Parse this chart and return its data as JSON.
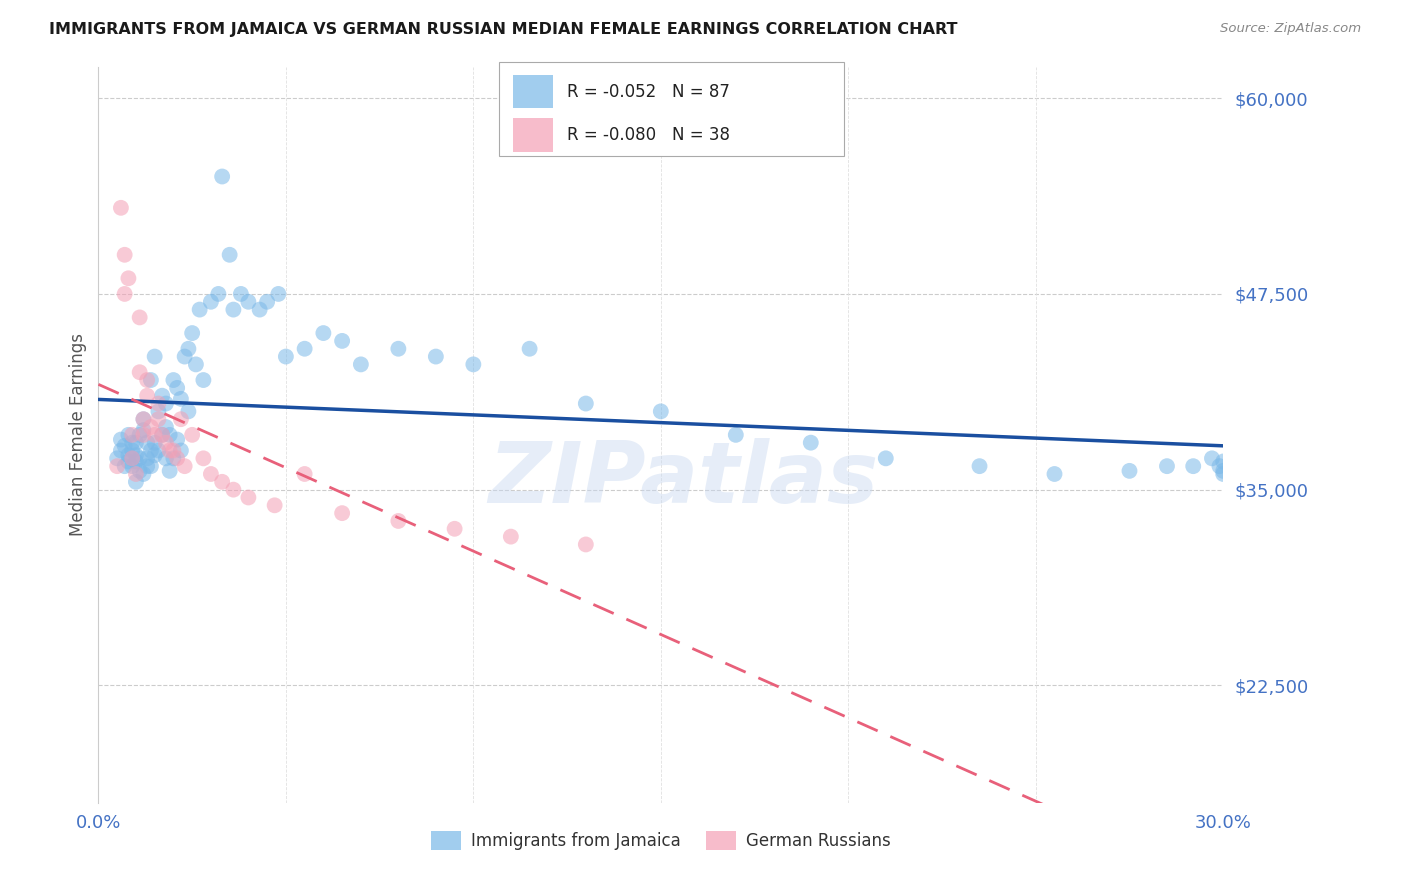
{
  "title": "IMMIGRANTS FROM JAMAICA VS GERMAN RUSSIAN MEDIAN FEMALE EARNINGS CORRELATION CHART",
  "source": "Source: ZipAtlas.com",
  "ylabel": "Median Female Earnings",
  "ytick_labels": [
    "$60,000",
    "$47,500",
    "$35,000",
    "$22,500"
  ],
  "ytick_values": [
    60000,
    47500,
    35000,
    22500
  ],
  "ymin": 15000,
  "ymax": 62000,
  "xmin": 0.0,
  "xmax": 0.3,
  "jamaica_R": "-0.052",
  "jamaica_N": "87",
  "german_R": "-0.080",
  "german_N": "38",
  "jamaica_color": "#7ab8e8",
  "german_color": "#f4a0b5",
  "jamaica_line_color": "#1a4fa0",
  "german_line_color": "#e8607a",
  "axis_label_color": "#4472c4",
  "watermark": "ZIPatlas",
  "jamaica_scatter_x": [
    0.005,
    0.006,
    0.006,
    0.007,
    0.007,
    0.008,
    0.008,
    0.008,
    0.009,
    0.009,
    0.009,
    0.009,
    0.01,
    0.01,
    0.01,
    0.01,
    0.011,
    0.011,
    0.011,
    0.012,
    0.012,
    0.012,
    0.013,
    0.013,
    0.013,
    0.014,
    0.014,
    0.014,
    0.015,
    0.015,
    0.015,
    0.016,
    0.016,
    0.017,
    0.017,
    0.018,
    0.018,
    0.018,
    0.019,
    0.019,
    0.02,
    0.02,
    0.021,
    0.021,
    0.022,
    0.022,
    0.023,
    0.024,
    0.024,
    0.025,
    0.026,
    0.027,
    0.028,
    0.03,
    0.032,
    0.033,
    0.035,
    0.036,
    0.038,
    0.04,
    0.043,
    0.045,
    0.048,
    0.05,
    0.055,
    0.06,
    0.065,
    0.07,
    0.08,
    0.09,
    0.1,
    0.115,
    0.13,
    0.15,
    0.17,
    0.19,
    0.21,
    0.235,
    0.255,
    0.275,
    0.285,
    0.292,
    0.297,
    0.299,
    0.3,
    0.3,
    0.3
  ],
  "jamaica_scatter_y": [
    37000,
    37500,
    38200,
    37800,
    36500,
    37200,
    38500,
    36800,
    37000,
    38000,
    36500,
    37500,
    38000,
    37200,
    36800,
    35500,
    37000,
    38500,
    36200,
    38800,
    39500,
    36000,
    37000,
    38000,
    36500,
    42000,
    37500,
    36500,
    43500,
    38000,
    37200,
    40000,
    37500,
    41000,
    38500,
    40500,
    39000,
    37000,
    38500,
    36200,
    42000,
    37000,
    41500,
    38200,
    40800,
    37500,
    43500,
    44000,
    40000,
    45000,
    43000,
    46500,
    42000,
    47000,
    47500,
    55000,
    50000,
    46500,
    47500,
    47000,
    46500,
    47000,
    47500,
    43500,
    44000,
    45000,
    44500,
    43000,
    44000,
    43500,
    43000,
    44000,
    40500,
    40000,
    38500,
    38000,
    37000,
    36500,
    36000,
    36200,
    36500,
    36500,
    37000,
    36500,
    36800,
    36200,
    36000
  ],
  "german_scatter_x": [
    0.005,
    0.006,
    0.007,
    0.007,
    0.008,
    0.009,
    0.009,
    0.01,
    0.011,
    0.011,
    0.012,
    0.012,
    0.013,
    0.013,
    0.014,
    0.015,
    0.016,
    0.016,
    0.017,
    0.018,
    0.019,
    0.02,
    0.021,
    0.022,
    0.023,
    0.025,
    0.028,
    0.03,
    0.033,
    0.036,
    0.04,
    0.047,
    0.055,
    0.065,
    0.08,
    0.095,
    0.11,
    0.13
  ],
  "german_scatter_y": [
    36500,
    53000,
    50000,
    47500,
    48500,
    38500,
    37000,
    36000,
    46000,
    42500,
    39500,
    38500,
    42000,
    41000,
    39000,
    38500,
    40500,
    39500,
    38500,
    38000,
    37500,
    37500,
    37000,
    39500,
    36500,
    38500,
    37000,
    36000,
    35500,
    35000,
    34500,
    34000,
    36000,
    33500,
    33000,
    32500,
    32000,
    31500
  ]
}
